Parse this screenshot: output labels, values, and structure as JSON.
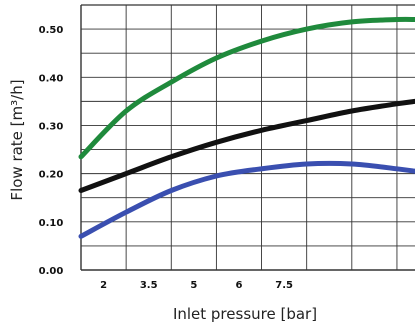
{
  "chart_data": {
    "type": "line",
    "xlabel": "Inlet pressure [bar]",
    "ylabel": "Flow rate [m³/h]",
    "x_tick_labels": [
      "2",
      "3.5",
      "5",
      "6",
      "7.5"
    ],
    "y_tick_labels": [
      "0.00",
      "0.10",
      "0.20",
      "0.30",
      "0.40",
      "0.50"
    ],
    "xlim": [
      1,
      8.4
    ],
    "ylim": [
      0,
      0.55
    ],
    "grid": true,
    "legend": "none",
    "series": [
      {
        "color": "#1f8a3c",
        "x": [
          1,
          2,
          3,
          4,
          5,
          6,
          7,
          8,
          8.4
        ],
        "y": [
          0.235,
          0.33,
          0.39,
          0.44,
          0.475,
          0.5,
          0.515,
          0.52,
          0.52
        ]
      },
      {
        "color": "#111111",
        "x": [
          1,
          2,
          3,
          4,
          5,
          6,
          7,
          8,
          8.4
        ],
        "y": [
          0.165,
          0.2,
          0.235,
          0.265,
          0.29,
          0.31,
          0.33,
          0.345,
          0.35
        ]
      },
      {
        "color": "#3a4fb0",
        "x": [
          1,
          2,
          3,
          4,
          5,
          6,
          7,
          8,
          8.4
        ],
        "y": [
          0.07,
          0.12,
          0.165,
          0.195,
          0.21,
          0.22,
          0.22,
          0.21,
          0.205
        ]
      }
    ]
  }
}
